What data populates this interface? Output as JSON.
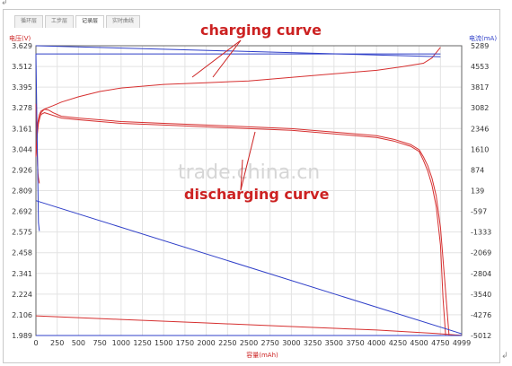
{
  "tabs": [
    "循环层",
    "工步层",
    "记录层",
    "实时曲线"
  ],
  "active_tab": 2,
  "marks": {
    "top_left": "↲",
    "bottom_right": "↲"
  },
  "watermark": "trade.china.cn",
  "annotations": {
    "charging": "charging curve",
    "discharging": "discharging curve"
  },
  "colors": {
    "voltage": "#d63030",
    "current": "#2f3fc8",
    "grid": "#e3e3e3"
  },
  "chart_data": {
    "type": "line",
    "title": "",
    "xlabel": "容量(mAh)",
    "ylabel_left": "电压(V)",
    "ylabel_right": "电流(mA)",
    "xlim": [
      0,
      4999
    ],
    "ylim_left": [
      1.989,
      3.629
    ],
    "ylim_right": [
      -5012,
      5289
    ],
    "grid": true,
    "x_ticks": [
      "0",
      "250",
      "500",
      "750",
      "1000",
      "1250",
      "1500",
      "1750",
      "2000",
      "2250",
      "2500",
      "2750",
      "3000",
      "3250",
      "3500",
      "3750",
      "4000",
      "4250",
      "4500",
      "4750",
      "4999"
    ],
    "y_left_ticks": [
      "3.629",
      "3.512",
      "3.395",
      "3.278",
      "3.161",
      "3.044",
      "2.926",
      "2.809",
      "2.692",
      "2.575",
      "2.458",
      "2.341",
      "2.224",
      "2.106",
      "1.989"
    ],
    "y_right_ticks": [
      "5289",
      "4553",
      "3817",
      "3082",
      "2346",
      "1610",
      "874",
      "139",
      "-597",
      "-1333",
      "-2069",
      "-2804",
      "-3540",
      "-4276",
      "-5012"
    ],
    "series": [
      {
        "axis": "left",
        "color": "#d63030",
        "x": [
          0,
          30,
          60,
          100,
          150,
          200,
          300,
          500,
          750,
          1000,
          1500,
          2000,
          2500,
          3000,
          3500,
          4000,
          4300,
          4550,
          4650,
          4700,
          4750
        ],
        "y": [
          3.05,
          3.19,
          3.25,
          3.27,
          3.28,
          3.29,
          3.31,
          3.34,
          3.37,
          3.39,
          3.41,
          3.42,
          3.43,
          3.45,
          3.47,
          3.49,
          3.51,
          3.53,
          3.56,
          3.59,
          3.62
        ]
      },
      {
        "axis": "left",
        "color": "#d63030",
        "x": [
          0,
          5,
          10,
          15,
          20,
          25,
          30,
          40
        ],
        "y": [
          3.3,
          3.2,
          3.12,
          3.02,
          2.95,
          2.9,
          2.88,
          2.85
        ]
      },
      {
        "axis": "left",
        "color": "#d63030",
        "x": [
          0,
          20,
          40,
          60,
          80,
          100,
          150,
          200,
          300,
          500,
          750,
          1000,
          1500,
          2000,
          2500,
          3000,
          3500,
          4000,
          4200,
          4400,
          4500,
          4550,
          4600,
          4650,
          4700,
          4750,
          4800,
          4850
        ],
        "y": [
          3.0,
          3.19,
          3.24,
          3.26,
          3.265,
          3.27,
          3.265,
          3.25,
          3.23,
          3.22,
          3.21,
          3.2,
          3.19,
          3.18,
          3.17,
          3.16,
          3.14,
          3.12,
          3.1,
          3.07,
          3.04,
          3.0,
          2.95,
          2.88,
          2.78,
          2.6,
          2.3,
          1.99
        ]
      },
      {
        "axis": "left",
        "color": "#d63030",
        "x": [
          0,
          20,
          40,
          60,
          100,
          200,
          300,
          500,
          750,
          1000,
          1500,
          2000,
          2500,
          3000,
          3500,
          4000,
          4200,
          4400,
          4500,
          4550,
          4600,
          4650,
          4700,
          4750,
          4780,
          4810
        ],
        "y": [
          3.0,
          3.17,
          3.22,
          3.24,
          3.25,
          3.235,
          3.22,
          3.21,
          3.2,
          3.19,
          3.18,
          3.17,
          3.16,
          3.15,
          3.13,
          3.11,
          3.09,
          3.06,
          3.03,
          2.98,
          2.92,
          2.84,
          2.72,
          2.5,
          2.2,
          1.99
        ]
      },
      {
        "axis": "left",
        "color": "#d63030",
        "x": [
          0,
          1000,
          2000,
          3000,
          4000,
          4700,
          4999
        ],
        "y": [
          2.1,
          2.08,
          2.06,
          2.04,
          2.02,
          2.0,
          1.99
        ]
      },
      {
        "axis": "right",
        "color": "#2f3fc8",
        "x": [
          0,
          4750
        ],
        "y": [
          5000,
          5000
        ]
      },
      {
        "axis": "right",
        "color": "#2f3fc8",
        "x": [
          0,
          4750
        ],
        "y": [
          5289,
          4900
        ]
      },
      {
        "axis": "right",
        "color": "#2f3fc8",
        "x": [
          0,
          10,
          20,
          30,
          40
        ],
        "y": [
          5000,
          3000,
          1000,
          -1000,
          -1300
        ]
      },
      {
        "axis": "right",
        "color": "#2f3fc8",
        "x": [
          0,
          4999
        ],
        "y": [
          -220,
          -4950
        ]
      },
      {
        "axis": "right",
        "color": "#2f3fc8",
        "x": [
          0,
          4999
        ],
        "y": [
          -5012,
          -5012
        ]
      }
    ]
  }
}
